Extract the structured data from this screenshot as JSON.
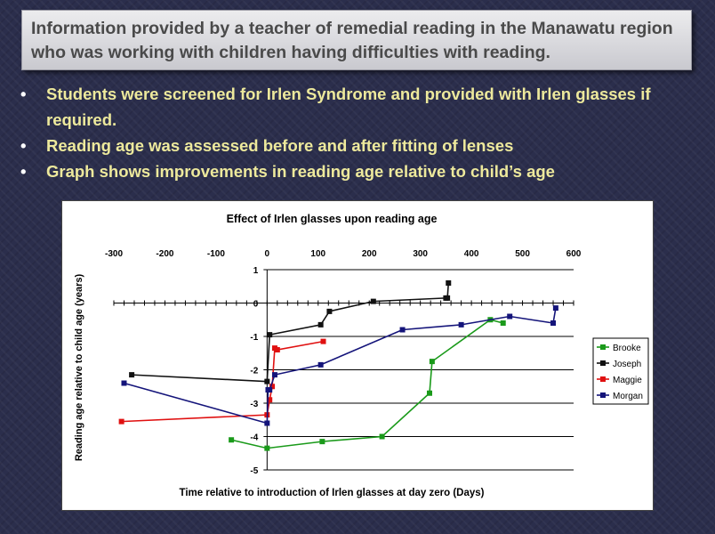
{
  "slide": {
    "title": "Information provided by a teacher of remedial reading in the Manawatu region who was working with children having difficulties with reading.",
    "bullets": [
      "Students were screened for Irlen Syndrome and provided with Irlen glasses if required.",
      "Reading age was assessed before and after fitting of lenses",
      "Graph shows improvements in reading age relative to child’s  age"
    ]
  },
  "chart_data": {
    "type": "line",
    "title": "Effect of Irlen glasses upon reading age",
    "xlabel": "Time relative to introduction of Irlen glasses at day zero (Days)",
    "ylabel": "Reading age relative to child age (years)",
    "xlim": [
      -300,
      600
    ],
    "ylim": [
      -5,
      1
    ],
    "x_ticks": [
      "-300",
      "-200",
      "-100",
      "0",
      "100",
      "200",
      "300",
      "400",
      "500",
      "600"
    ],
    "y_ticks": [
      "1",
      "0",
      "-1",
      "-2",
      "-3",
      "-4",
      "-5"
    ],
    "x_axis_position": "top",
    "grid": "horizontal",
    "legend_position": "right",
    "series": [
      {
        "name": "Brooke",
        "color": "#1a9a1a",
        "x": [
          -70,
          0,
          108,
          225,
          318,
          323,
          437,
          462
        ],
        "y": [
          -4.1,
          -4.35,
          -4.15,
          -4.0,
          -2.7,
          -1.75,
          -0.5,
          -0.6
        ]
      },
      {
        "name": "Joseph",
        "color": "#111111",
        "x": [
          -265,
          0,
          5,
          105,
          122,
          208,
          350,
          353,
          355
        ],
        "y": [
          -2.15,
          -2.35,
          -0.95,
          -0.65,
          -0.25,
          0.05,
          0.15,
          0.15,
          0.6
        ]
      },
      {
        "name": "Maggie",
        "color": "#e01010",
        "x": [
          -285,
          0,
          5,
          10,
          15,
          20,
          110
        ],
        "y": [
          -3.55,
          -3.35,
          -2.9,
          -2.5,
          -1.35,
          -1.4,
          -1.15
        ]
      },
      {
        "name": "Morgan",
        "color": "#14147a",
        "x": [
          -280,
          0,
          2,
          5,
          15,
          105,
          265,
          380,
          475,
          560,
          565
        ],
        "y": [
          -2.4,
          -3.6,
          -2.6,
          -2.6,
          -2.15,
          -1.85,
          -0.8,
          -0.65,
          -0.4,
          -0.6,
          -0.15
        ]
      }
    ]
  }
}
